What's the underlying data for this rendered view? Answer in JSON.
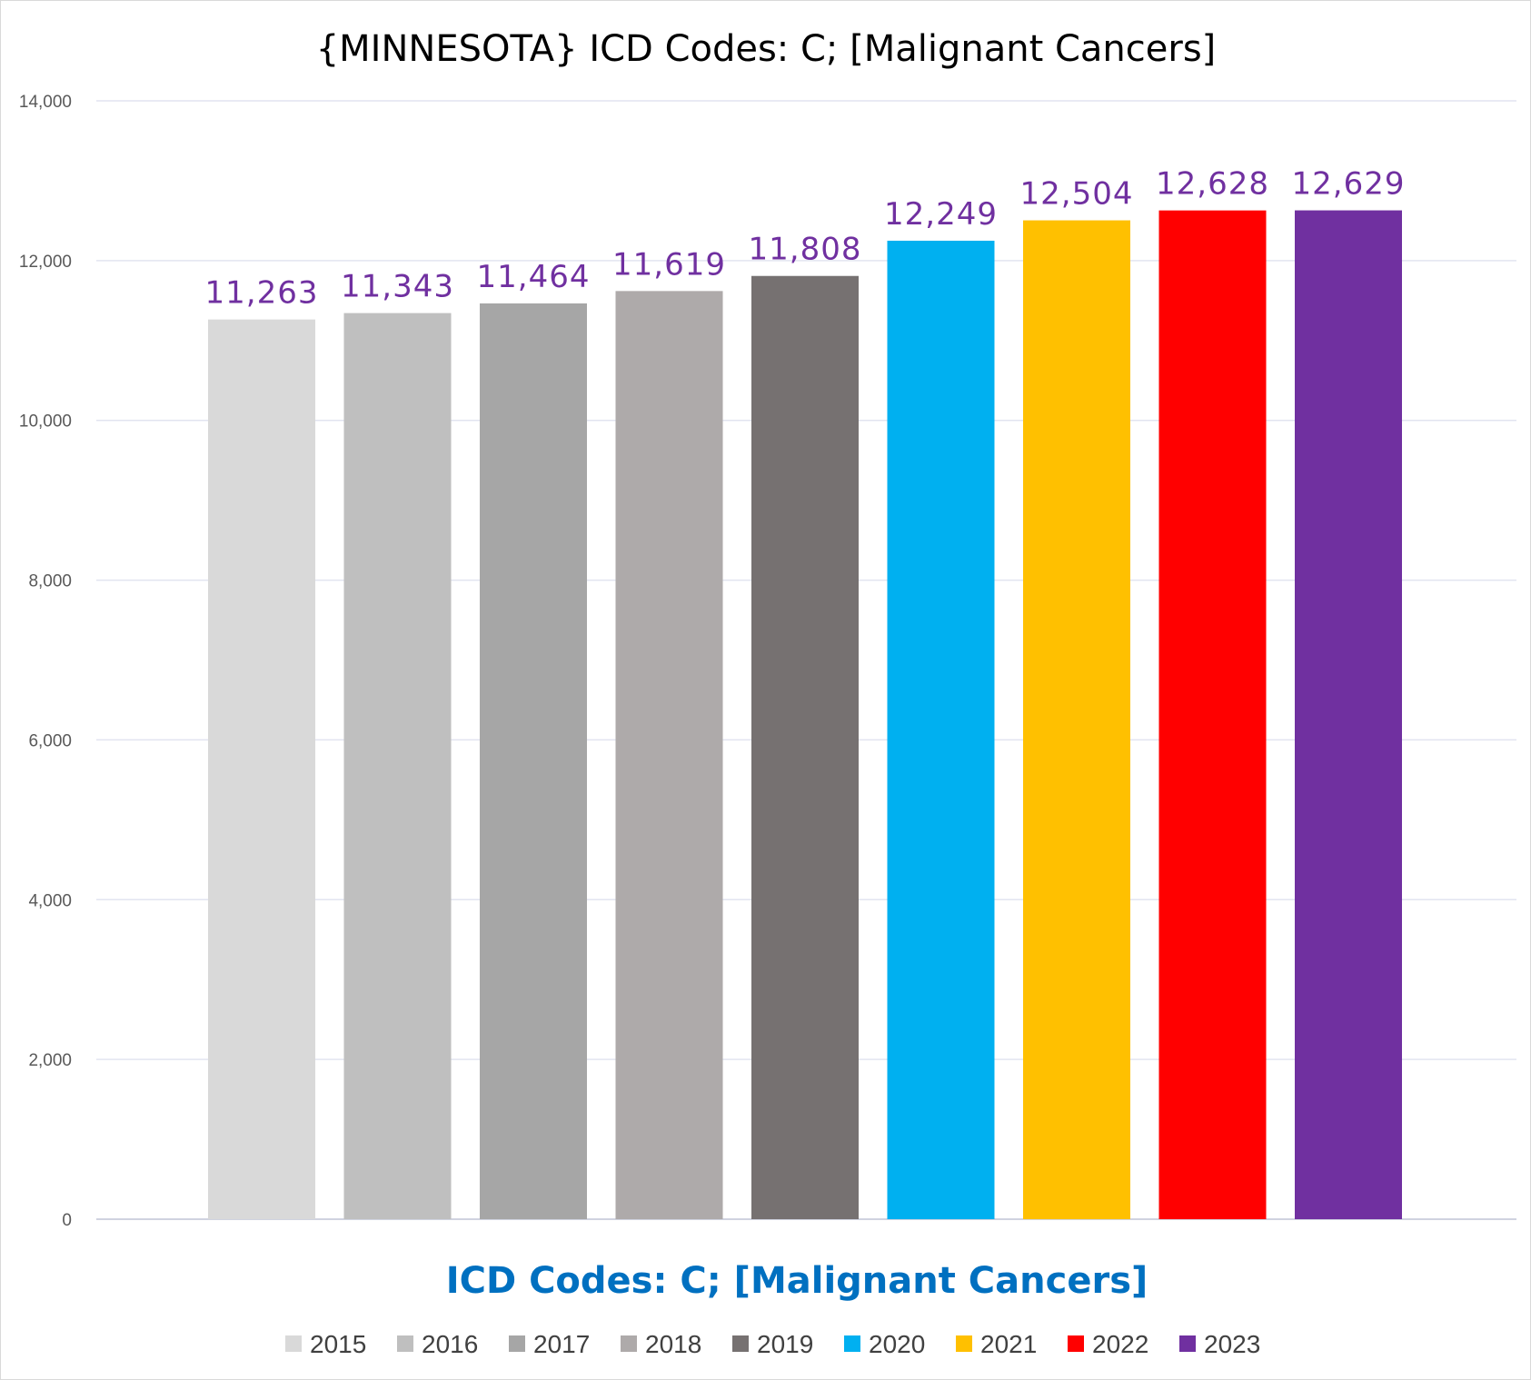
{
  "chart_data": {
    "type": "bar",
    "title": "{MINNESOTA}  ICD Codes: C;  [Malignant Cancers]",
    "xlabel": "ICD Codes: C;  [Malignant Cancers]",
    "ylabel": "",
    "ylim": [
      0,
      14000
    ],
    "yticks": [
      0,
      2000,
      4000,
      6000,
      8000,
      10000,
      12000,
      14000
    ],
    "ytick_labels": [
      "0",
      "2,000",
      "4,000",
      "6,000",
      "8,000",
      "10,000",
      "12,000",
      "14,000"
    ],
    "grid": true,
    "legend_position": "bottom",
    "series": [
      {
        "name": "2015",
        "value": 11263,
        "label": "11,263",
        "color": "#d9d9d9"
      },
      {
        "name": "2016",
        "value": 11343,
        "label": "11,343",
        "color": "#bfbfbf"
      },
      {
        "name": "2017",
        "value": 11464,
        "label": "11,464",
        "color": "#a6a6a6"
      },
      {
        "name": "2018",
        "value": 11619,
        "label": "11,619",
        "color": "#aeaaaa"
      },
      {
        "name": "2019",
        "value": 11808,
        "label": "11,808",
        "color": "#767171"
      },
      {
        "name": "2020",
        "value": 12249,
        "label": "12,249",
        "color": "#00b0f0"
      },
      {
        "name": "2021",
        "value": 12504,
        "label": "12,504",
        "color": "#ffc000"
      },
      {
        "name": "2022",
        "value": 12628,
        "label": "12,628",
        "color": "#ff0000"
      },
      {
        "name": "2023",
        "value": 12629,
        "label": "12,629",
        "color": "#7030a0"
      }
    ],
    "colors": {
      "data_label": "#7030a0",
      "xlabel": "#0070c0",
      "gridline": "#e2e4f0",
      "baseline": "#d0d3e0"
    }
  }
}
